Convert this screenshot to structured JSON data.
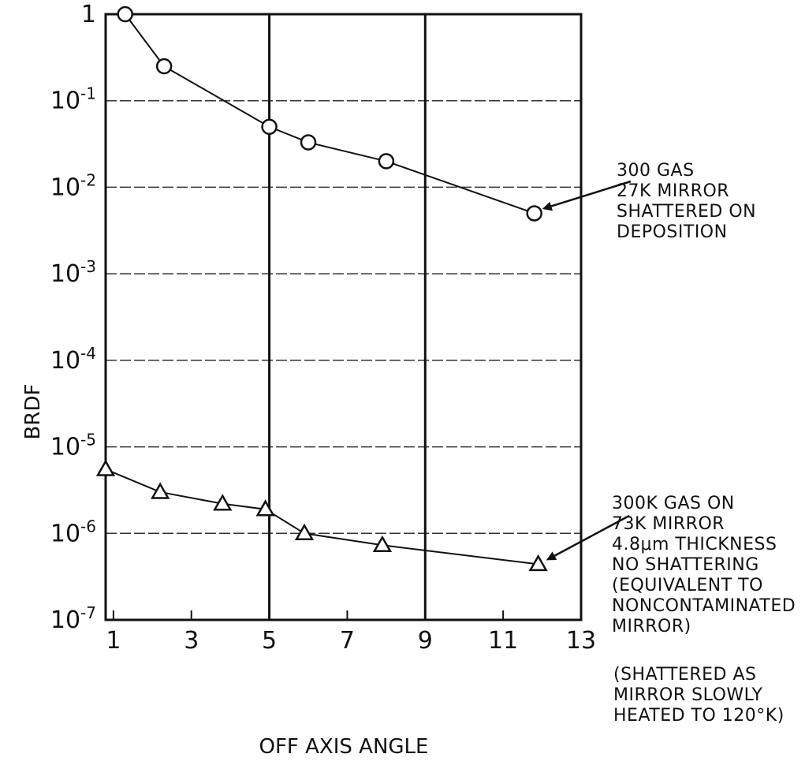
{
  "chart_data": {
    "type": "line",
    "title": "",
    "xlabel": "OFF AXIS ANGLE",
    "ylabel": "BRDF",
    "yscale": "log",
    "xlim": [
      0.8,
      13
    ],
    "ylim": [
      1e-07,
      1
    ],
    "x_ticks": [
      "1",
      "3",
      "5",
      "7",
      "9",
      "11",
      "13"
    ],
    "y_ticks": [
      "1",
      "10-1",
      "10-2",
      "10-3",
      "10-4",
      "10-5",
      "10-6",
      "10-7"
    ],
    "grid": "horizontal dashed lines at each decade; solid vertical lines at 5 and 9",
    "series": [
      {
        "marker": "circle",
        "color": "#111111",
        "points": [
          [
            1.3,
            1.0
          ],
          [
            2.3,
            0.25
          ],
          [
            5.0,
            0.05
          ],
          [
            6.0,
            0.033
          ],
          [
            8.0,
            0.02
          ],
          [
            11.8,
            0.005
          ]
        ]
      },
      {
        "marker": "triangle",
        "color": "#111111",
        "points": [
          [
            0.8,
            5.5e-06
          ],
          [
            2.2,
            3e-06
          ],
          [
            3.8,
            2.2e-06
          ],
          [
            4.9,
            1.9e-06
          ],
          [
            5.9,
            1e-06
          ],
          [
            7.9,
            7.3e-07
          ],
          [
            11.9,
            4.4e-07
          ]
        ]
      }
    ],
    "annotations": [
      {
        "lines": [
          "300 GAS",
          "27K MIRROR",
          "SHATTERED ON",
          "DEPOSITION"
        ],
        "points_to_series": 0
      },
      {
        "lines": [
          "300K GAS ON",
          "73K MIRROR",
          "4.8μm THICKNESS",
          "NO SHATTERING",
          "(EQUIVALENT TO",
          "NONCONTAMINATED",
          "MIRROR)"
        ],
        "points_to_series": 1
      },
      {
        "lines": [
          "(SHATTERED AS",
          "MIRROR SLOWLY",
          "HEATED TO 120°K)"
        ]
      }
    ]
  }
}
